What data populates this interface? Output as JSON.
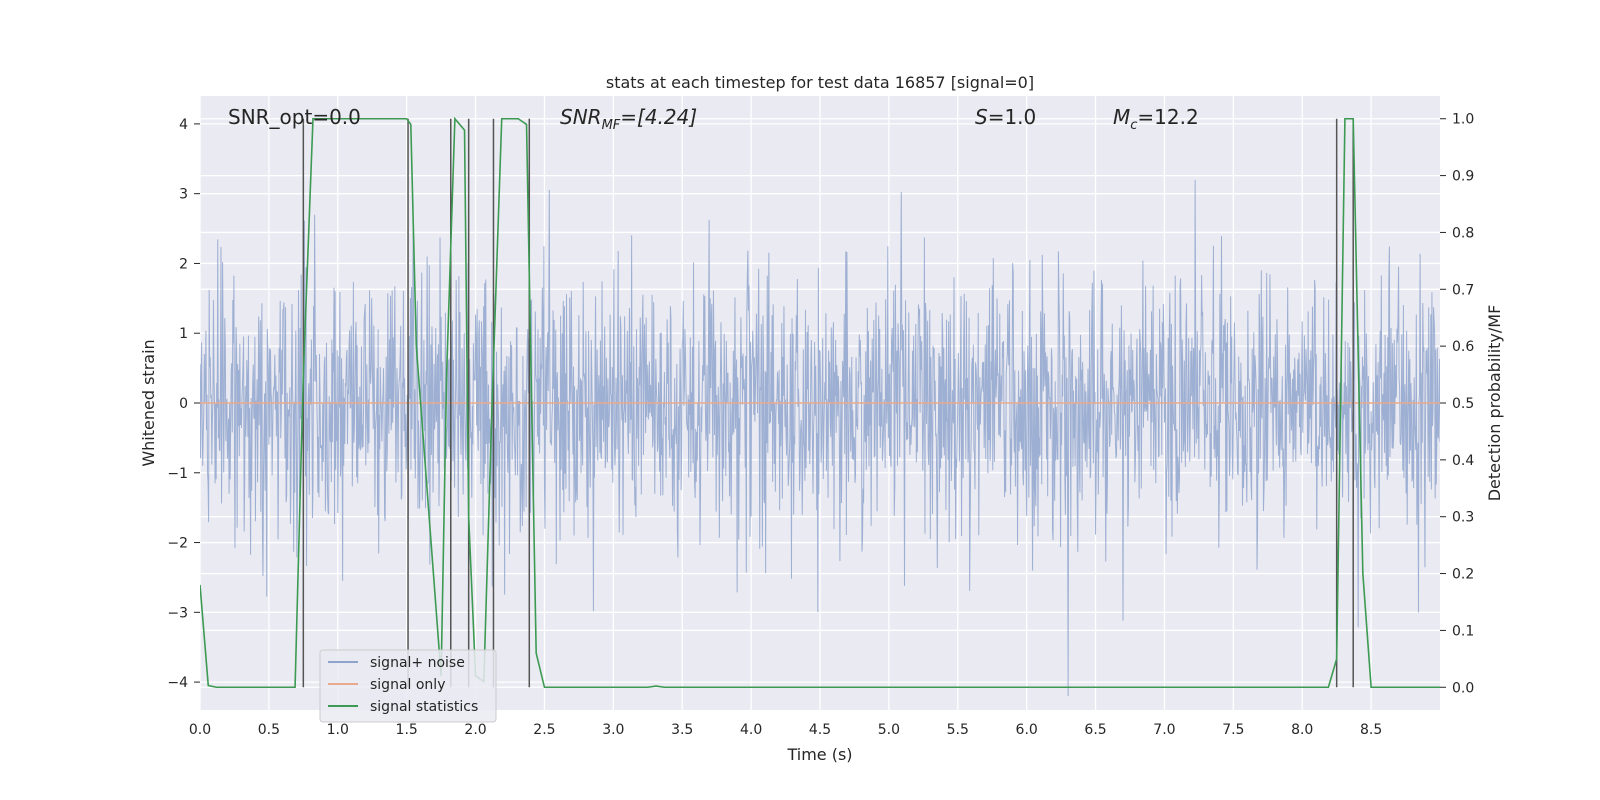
{
  "chart_data": {
    "type": "line",
    "title": "stats at each timestep for test data 16857 [signal=0]",
    "xlabel": "Time (s)",
    "ylabel_left": "Whitened strain",
    "ylabel_right": "Detection probability/MF",
    "xlim": [
      0.0,
      9.0
    ],
    "ylim_left": [
      -4.4,
      4.4
    ],
    "ylim_right": [
      -0.04,
      1.04
    ],
    "x_ticks": [
      0.0,
      0.5,
      1.0,
      1.5,
      2.0,
      2.5,
      3.0,
      3.5,
      4.0,
      4.5,
      5.0,
      5.5,
      6.0,
      6.5,
      7.0,
      7.5,
      8.0,
      8.5
    ],
    "x_tick_labels": [
      "0.0",
      "0.5",
      "1.0",
      "1.5",
      "2.0",
      "2.5",
      "3.0",
      "3.5",
      "4.0",
      "4.5",
      "5.0",
      "5.5",
      "6.0",
      "6.5",
      "7.0",
      "7.5",
      "8.0",
      "8.5"
    ],
    "y_ticks_left": [
      -4,
      -3,
      -2,
      -1,
      0,
      1,
      2,
      3,
      4
    ],
    "y_tick_labels_left": [
      "−4",
      "−3",
      "−2",
      "−1",
      "0",
      "1",
      "2",
      "3",
      "4"
    ],
    "y_ticks_right": [
      0.0,
      0.1,
      0.2,
      0.3,
      0.4,
      0.5,
      0.6,
      0.7,
      0.8,
      0.9,
      1.0
    ],
    "y_tick_labels_right": [
      "0.0",
      "0.1",
      "0.2",
      "0.3",
      "0.4",
      "0.5",
      "0.6",
      "0.7",
      "0.8",
      "0.9",
      "1.0"
    ],
    "annotations": {
      "snr_opt": "SNR_opt=0.0",
      "snr_mf_main": "SNR",
      "snr_mf_sub": "MF",
      "snr_mf_value": "=[4.24]",
      "s_main": "S",
      "s_value": "=1.0",
      "mc_main": "M",
      "mc_sub": "c",
      "mc_value": "=12.2"
    },
    "legend": {
      "position": "lower-left",
      "entries": [
        "signal+ noise",
        "signal only",
        "signal statistics"
      ]
    },
    "series": [
      {
        "name": "signal+ noise",
        "color": "#8fa4cc",
        "axis": "left",
        "kind": "noise",
        "sigma": 0.8,
        "sample_rate": 256
      },
      {
        "name": "signal only",
        "color": "#e8a98c",
        "axis": "left",
        "x": [
          0.0,
          9.0
        ],
        "y": [
          0.0,
          0.0
        ]
      },
      {
        "name": "signal statistics",
        "color": "#3d9a52",
        "axis": "right",
        "x": [
          0.0,
          0.06,
          0.12,
          0.69,
          0.75,
          0.82,
          1.5,
          1.53,
          1.57,
          1.75,
          1.79,
          1.85,
          1.92,
          1.95,
          2.0,
          2.06,
          2.12,
          2.19,
          2.25,
          2.31,
          2.37,
          2.44,
          2.5,
          3.25,
          3.31,
          3.37,
          8.19,
          8.25,
          8.31,
          8.37,
          8.44,
          8.5,
          9.0
        ],
        "y": [
          0.18,
          0.003,
          0.0,
          0.0,
          0.55,
          1.0,
          1.0,
          0.99,
          0.6,
          0.02,
          0.55,
          1.0,
          0.98,
          0.3,
          0.02,
          0.01,
          0.5,
          1.0,
          1.0,
          1.0,
          0.99,
          0.06,
          0.0,
          0.0,
          0.002,
          0.0,
          0.0,
          0.05,
          1.0,
          1.0,
          0.2,
          0.0,
          0.0
        ]
      }
    ],
    "vertical_lines": {
      "color": "#555555",
      "axis": "right",
      "x": [
        0.75,
        1.51,
        1.82,
        1.95,
        2.13,
        2.39,
        8.25,
        8.37
      ],
      "ymin": [
        0.0,
        0.0,
        0.0,
        0.0,
        0.0,
        0.0,
        0.0,
        0.0
      ],
      "ymax": [
        1.0,
        1.0,
        1.0,
        1.0,
        1.0,
        1.0,
        1.0,
        1.0
      ]
    }
  }
}
